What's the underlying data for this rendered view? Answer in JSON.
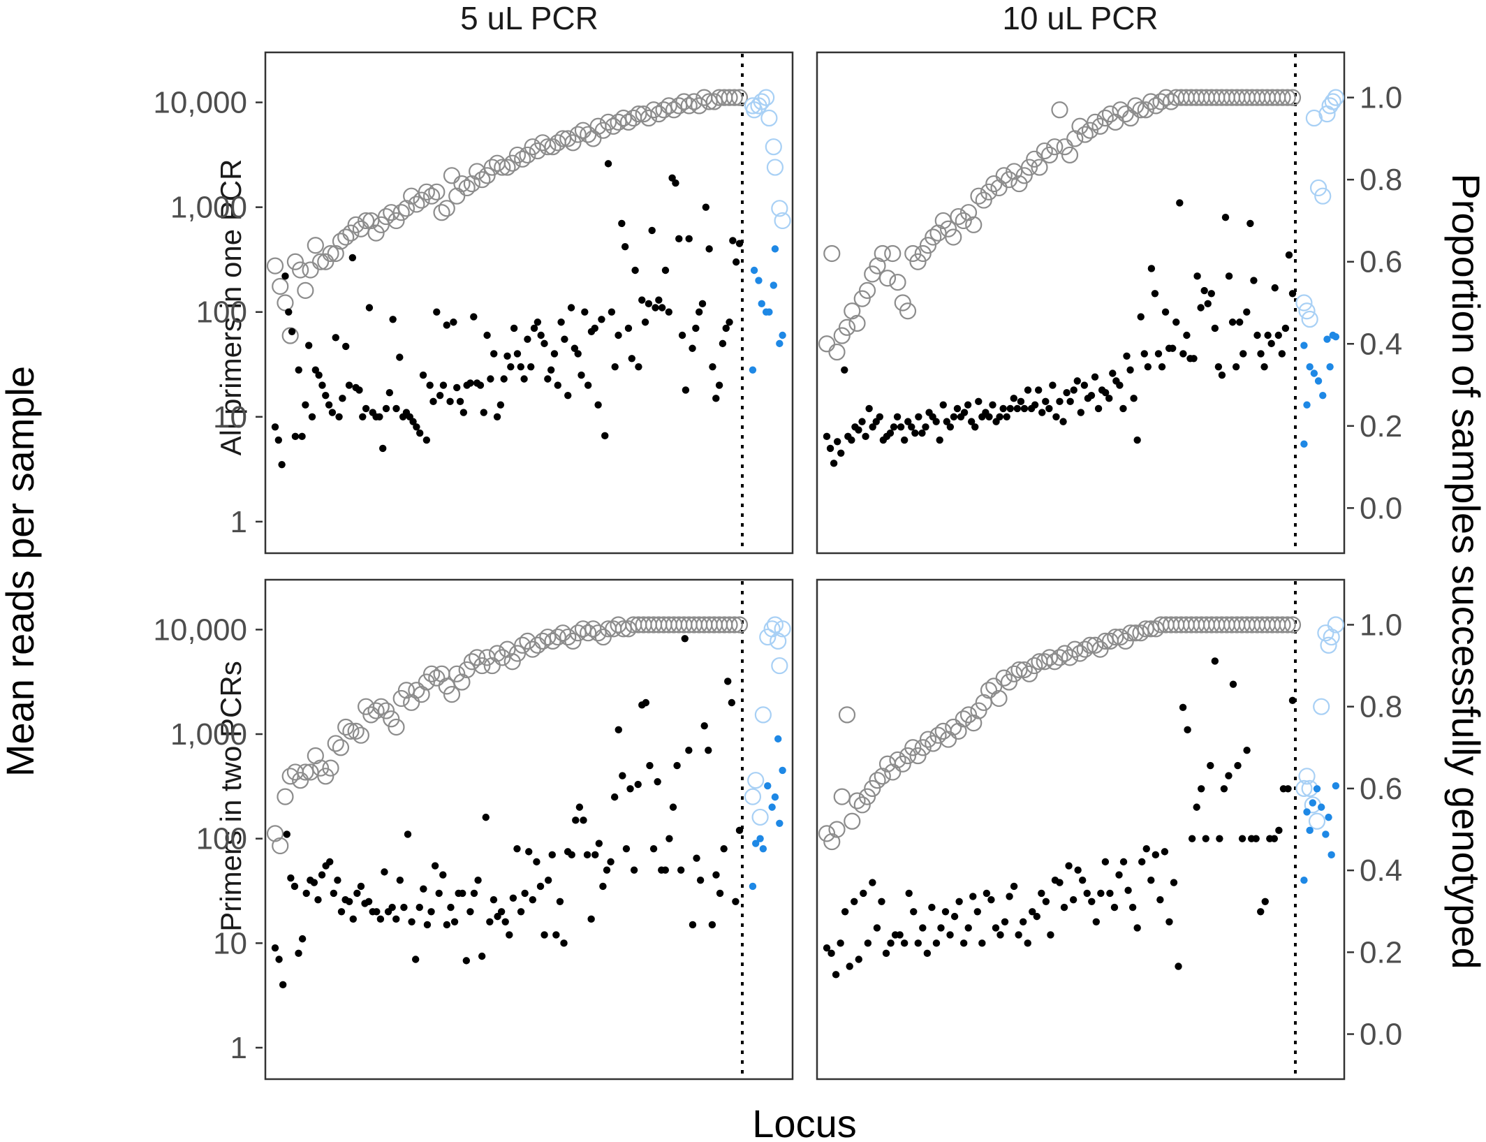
{
  "chart_data": {
    "type": "scatter",
    "columns": [
      "5 uL PCR",
      "10 uL PCR"
    ],
    "rows": [
      "All primers in one PCR",
      "Primers in two PCRs"
    ],
    "x_axis": {
      "label": "Locus"
    },
    "left_axis": {
      "label": "Mean reads per sample",
      "scale": "log10",
      "range": [
        0.5,
        30000
      ],
      "ticks": [
        1,
        10,
        100,
        1000,
        10000
      ],
      "tick_labels": [
        "1",
        "10",
        "100",
        "1,000",
        "10,000"
      ]
    },
    "right_axis": {
      "label": "Proportion of samples successfully genotyped",
      "scale": "linear",
      "range": [
        -0.11,
        1.11
      ],
      "ticks": [
        0,
        0.2,
        0.4,
        0.6,
        0.8,
        1.0
      ],
      "tick_labels": [
        "0.0",
        "0.2",
        "0.4",
        "0.6",
        "0.8",
        "1.0"
      ]
    },
    "divider": {
      "style": "dotted",
      "after_locus_count": 93
    },
    "colors": {
      "reads_main": "#000000",
      "reads_extra": "#1e88e5",
      "prop_main": "#8c8c8c",
      "prop_extra": "#a8d0f5"
    },
    "encoding": {
      "filled_points": "Mean reads per sample",
      "open_circles": "Proportion of samples successfully genotyped"
    },
    "grid": false,
    "legend": "none",
    "panels": [
      {
        "column": "5 uL PCR",
        "row": "All primers in one PCR",
        "reads_main": [
          8,
          6,
          3.5,
          220,
          100,
          65,
          6.5,
          28,
          6.5,
          13,
          48,
          10,
          28,
          25,
          20,
          16,
          13,
          11,
          57,
          10,
          15,
          47,
          20,
          330,
          19,
          18,
          10,
          12,
          110,
          11,
          10,
          10,
          5,
          12,
          17,
          85,
          12,
          37,
          10,
          11,
          10,
          9,
          8,
          7,
          25,
          6,
          20,
          14,
          100,
          16,
          20,
          75,
          14,
          80,
          19,
          14,
          11,
          20,
          21,
          90,
          21,
          20,
          11,
          60,
          23,
          40,
          10,
          13,
          23,
          38,
          30,
          70,
          40,
          30,
          23,
          55,
          30,
          70,
          80,
          60,
          50,
          23,
          28,
          40,
          20,
          80,
          55,
          16,
          110,
          45,
          40,
          25,
          100,
          20,
          65,
          70,
          13,
          85,
          6.6,
          2600,
          100,
          30,
          60,
          700,
          420,
          70,
          36,
          250,
          30,
          130,
          80,
          120,
          600,
          110,
          130,
          110,
          250,
          100,
          1900,
          1700,
          500,
          60,
          18,
          500,
          45,
          70,
          100,
          120,
          1000,
          400,
          30,
          15,
          20,
          50,
          70,
          80,
          480,
          300,
          450
        ],
        "reads_extra": [
          28,
          250,
          200,
          120,
          100,
          100,
          180,
          400,
          50,
          60
        ],
        "prop_main": [
          0.59,
          0.54,
          0.5,
          0.42,
          0.6,
          0.58,
          0.53,
          0.58,
          0.64,
          0.6,
          0.6,
          0.62,
          0.62,
          0.65,
          0.66,
          0.67,
          0.69,
          0.68,
          0.7,
          0.7,
          0.67,
          0.69,
          0.71,
          0.72,
          0.7,
          0.72,
          0.73,
          0.76,
          0.74,
          0.75,
          0.77,
          0.76,
          0.77,
          0.72,
          0.73,
          0.81,
          0.76,
          0.79,
          0.78,
          0.79,
          0.82,
          0.8,
          0.81,
          0.83,
          0.84,
          0.83,
          0.83,
          0.84,
          0.86,
          0.85,
          0.86,
          0.88,
          0.87,
          0.89,
          0.88,
          0.88,
          0.89,
          0.9,
          0.9,
          0.89,
          0.91,
          0.92,
          0.91,
          0.9,
          0.93,
          0.92,
          0.94,
          0.93,
          0.94,
          0.95,
          0.94,
          0.95,
          0.96,
          0.96,
          0.95,
          0.97,
          0.96,
          0.97,
          0.98,
          0.97,
          0.98,
          0.99,
          0.98,
          0.99,
          0.98,
          1,
          0.99,
          0.99,
          1,
          1,
          1,
          1,
          1
        ],
        "prop_extra": [
          0.98,
          0.97,
          0.98,
          0.99,
          1,
          0.95,
          0.88,
          0.83,
          0.73,
          0.7
        ],
        "extra_x": [
          3.5,
          4,
          5.5,
          6.5,
          8,
          9,
          10.5,
          11,
          12.5,
          13.5
        ]
      },
      {
        "column": "10 uL PCR",
        "row": "All primers in one PCR",
        "reads_main": [
          6.5,
          5,
          3.6,
          5.8,
          4.5,
          28,
          6.5,
          6,
          8,
          7.5,
          9,
          6.5,
          12,
          8,
          9,
          10,
          6,
          6.5,
          7,
          8,
          10,
          8,
          6,
          9,
          8,
          7,
          10,
          7,
          8,
          11,
          10,
          9,
          6,
          13,
          9,
          8,
          10,
          12,
          10,
          11,
          13,
          9,
          8,
          14,
          10,
          11,
          10,
          13,
          9,
          10,
          12,
          10,
          12,
          15,
          12,
          14,
          12,
          18,
          12,
          13,
          18,
          11,
          14,
          12,
          20,
          10,
          14,
          9,
          17,
          14,
          18,
          22,
          11,
          20,
          15,
          16,
          24,
          12,
          18,
          17,
          15,
          26,
          22,
          20,
          12,
          38,
          28,
          15,
          6,
          90,
          40,
          30,
          260,
          150,
          40,
          30,
          100,
          45,
          45,
          80,
          1100,
          40,
          60,
          36,
          36,
          220,
          110,
          160,
          120,
          150,
          70,
          30,
          25,
          800,
          220,
          80,
          30,
          80,
          40,
          100,
          700,
          200,
          60,
          40,
          30,
          60,
          50,
          170,
          60,
          40,
          70,
          350,
          150
        ],
        "reads_extra": [
          5.5,
          13,
          30,
          26,
          22,
          16,
          55,
          30,
          60,
          58,
          48
        ],
        "prop_main": [
          0.4,
          0.62,
          0.38,
          0.42,
          0.44,
          0.48,
          0.45,
          0.51,
          0.53,
          0.57,
          0.59,
          0.62,
          0.56,
          0.62,
          0.55,
          0.5,
          0.48,
          0.62,
          0.6,
          0.62,
          0.64,
          0.66,
          0.67,
          0.7,
          0.68,
          0.66,
          0.71,
          0.7,
          0.72,
          0.69,
          0.76,
          0.75,
          0.77,
          0.79,
          0.78,
          0.81,
          0.8,
          0.82,
          0.79,
          0.81,
          0.83,
          0.85,
          0.83,
          0.87,
          0.86,
          0.88,
          0.97,
          0.88,
          0.86,
          0.9,
          0.93,
          0.91,
          0.92,
          0.94,
          0.93,
          0.95,
          0.96,
          0.94,
          0.97,
          0.96,
          0.95,
          0.98,
          0.97,
          0.97,
          0.99,
          0.98,
          0.99,
          1,
          0.99,
          1,
          1,
          1,
          1,
          1,
          1,
          1,
          1,
          1,
          1,
          1,
          1,
          1,
          1,
          1,
          1,
          1,
          1,
          1,
          1,
          1,
          1,
          1,
          1
        ],
        "prop_extra": [
          0.5,
          0.48,
          0.46,
          0.95,
          0.78,
          0.76,
          0.96,
          0.98,
          0.99,
          1
        ],
        "extra_x": [
          3,
          4,
          5,
          6.5,
          8,
          9.5,
          11,
          12,
          13,
          14
        ]
      },
      {
        "column": "5 uL PCR",
        "row": "Primers in two PCRs",
        "reads_main": [
          9,
          7,
          4,
          110,
          42,
          35,
          8,
          11,
          30,
          40,
          38,
          26,
          45,
          55,
          60,
          30,
          40,
          20,
          26,
          25,
          17,
          30,
          35,
          24,
          25,
          20,
          20,
          17,
          48,
          20,
          22,
          17,
          40,
          22,
          110,
          16,
          7,
          22,
          33,
          15,
          20,
          55,
          30,
          45,
          15,
          22,
          16,
          30,
          30,
          6.8,
          20,
          30,
          40,
          7.5,
          160,
          16,
          26,
          18,
          20,
          16,
          12,
          27,
          80,
          20,
          30,
          75,
          26,
          60,
          35,
          12,
          40,
          70,
          12,
          25,
          10,
          75,
          70,
          150,
          200,
          150,
          70,
          17,
          70,
          90,
          35,
          50,
          60,
          250,
          1100,
          400,
          80,
          300,
          50,
          330,
          1900,
          2000,
          500,
          80,
          350,
          50,
          50,
          100,
          200,
          500,
          50,
          8200,
          700,
          15,
          65,
          40,
          1200,
          700,
          15,
          45,
          30,
          80,
          3200,
          2000,
          25,
          120
        ],
        "reads_extra": [
          35,
          90,
          100,
          80,
          320,
          200,
          250,
          900,
          140,
          450
        ],
        "prop_main": [
          0.49,
          0.46,
          0.58,
          0.63,
          0.64,
          0.62,
          0.64,
          0.64,
          0.68,
          0.65,
          0.63,
          0.65,
          0.71,
          0.7,
          0.75,
          0.74,
          0.74,
          0.73,
          0.8,
          0.78,
          0.79,
          0.8,
          0.79,
          0.77,
          0.75,
          0.82,
          0.84,
          0.81,
          0.84,
          0.83,
          0.86,
          0.88,
          0.87,
          0.88,
          0.85,
          0.83,
          0.88,
          0.86,
          0.89,
          0.91,
          0.92,
          0.9,
          0.92,
          0.9,
          0.93,
          0.92,
          0.94,
          0.91,
          0.93,
          0.95,
          0.96,
          0.94,
          0.95,
          0.96,
          0.97,
          0.96,
          0.97,
          0.98,
          0.97,
          0.96,
          0.98,
          0.99,
          0.98,
          0.99,
          0.98,
          0.97,
          0.99,
          0.99,
          1,
          0.99,
          0.99,
          1,
          1,
          1,
          1,
          1,
          1,
          1,
          1,
          1,
          1,
          1,
          1,
          1,
          1,
          1,
          1,
          1,
          1,
          1,
          1,
          1,
          1
        ],
        "prop_extra": [
          0.58,
          0.62,
          0.53,
          0.78,
          0.97,
          0.99,
          1,
          0.96,
          0.9,
          0.99
        ],
        "extra_x": [
          3.5,
          4.5,
          6,
          7,
          8.5,
          10,
          11,
          12,
          12.5,
          13.5
        ]
      },
      {
        "column": "10 uL PCR",
        "row": "Primers in two PCRs",
        "reads_main": [
          9,
          8,
          5,
          10,
          20,
          6,
          25,
          7,
          30,
          10,
          38,
          14,
          25,
          8,
          10,
          12,
          12,
          10,
          30,
          20,
          10,
          14,
          8,
          22,
          10,
          14,
          20,
          12,
          18,
          25,
          10,
          14,
          28,
          20,
          10,
          30,
          26,
          14,
          12,
          16,
          28,
          35,
          12,
          16,
          10,
          20,
          18,
          30,
          25,
          12,
          40,
          38,
          22,
          55,
          26,
          50,
          40,
          30,
          25,
          16,
          30,
          60,
          30,
          22,
          45,
          60,
          32,
          22,
          14,
          60,
          80,
          40,
          70,
          26,
          75,
          16,
          38,
          6,
          1800,
          1100,
          100,
          200,
          300,
          100,
          500,
          5000,
          100,
          300,
          400,
          3000,
          500,
          100,
          700,
          100,
          100,
          20,
          25,
          100,
          100,
          120,
          300,
          300,
          2100
        ],
        "reads_extra": [
          40,
          180,
          120,
          220,
          300,
          200,
          110,
          160,
          70,
          320
        ],
        "prop_main": [
          0.49,
          0.47,
          0.5,
          0.58,
          0.78,
          0.52,
          0.57,
          0.56,
          0.58,
          0.6,
          0.62,
          0.63,
          0.66,
          0.64,
          0.67,
          0.66,
          0.68,
          0.7,
          0.68,
          0.7,
          0.72,
          0.71,
          0.73,
          0.74,
          0.72,
          0.75,
          0.74,
          0.77,
          0.78,
          0.76,
          0.79,
          0.81,
          0.84,
          0.85,
          0.82,
          0.87,
          0.86,
          0.88,
          0.89,
          0.89,
          0.88,
          0.9,
          0.91,
          0.91,
          0.92,
          0.91,
          0.92,
          0.93,
          0.92,
          0.94,
          0.93,
          0.94,
          0.95,
          0.95,
          0.94,
          0.96,
          0.96,
          0.97,
          0.97,
          0.96,
          0.98,
          0.98,
          0.98,
          0.99,
          0.99,
          0.99,
          1,
          1,
          1,
          1,
          1,
          1,
          1,
          1,
          1,
          1,
          1,
          1,
          1,
          1,
          1,
          1,
          1,
          1,
          1,
          1,
          1,
          1,
          1,
          1,
          1,
          1,
          1
        ],
        "prop_extra": [
          0.6,
          0.63,
          0.6,
          0.56,
          0.52,
          0.8,
          0.98,
          0.95,
          0.97,
          1
        ],
        "extra_x": [
          3,
          4,
          5,
          6,
          7.5,
          9,
          10.5,
          11.5,
          12.5,
          14
        ]
      }
    ]
  }
}
